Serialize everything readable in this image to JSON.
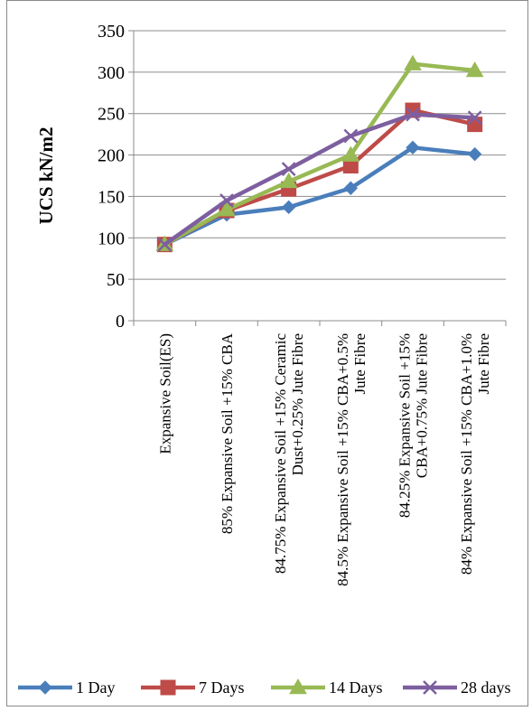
{
  "chart_data": {
    "type": "line",
    "title": "",
    "xlabel": "",
    "ylabel": "UCS  kN/m2",
    "ylim": [
      0,
      350
    ],
    "yticks": [
      0,
      50,
      100,
      150,
      200,
      250,
      300,
      350
    ],
    "grid": "horizontal",
    "legend_position": "bottom",
    "categories": [
      [
        "Expansive Soil(ES)"
      ],
      [
        "85% Expansive Soil  +15%  CBA"
      ],
      [
        "84.75% Expansive Soil  +15%  Ceramic",
        "Dust+0.25% Jute Fibre"
      ],
      [
        "84.5% Expansive Soil  +15%  CBA+0.5%",
        "Jute Fibre"
      ],
      [
        "84.25% Expansive Soil  +15%",
        "CBA+0.75% Jute Fibre"
      ],
      [
        "84% Expansive Soil  +15%  CBA+1.0%",
        "Jute Fibre"
      ]
    ],
    "series": [
      {
        "name": "1 Day",
        "color": "#4a7ebb",
        "marker": "diamond",
        "values": [
          92,
          128,
          137,
          160,
          209,
          201
        ]
      },
      {
        "name": "7 Days",
        "color": "#be4b48",
        "marker": "square",
        "values": [
          92,
          133,
          159,
          187,
          254,
          237
        ]
      },
      {
        "name": "14 Days",
        "color": "#98b954",
        "marker": "triangle",
        "values": [
          92,
          134,
          168,
          200,
          310,
          302
        ]
      },
      {
        "name": "28 days",
        "color": "#7d5fa0",
        "marker": "x",
        "values": [
          92,
          145,
          183,
          223,
          249,
          245
        ]
      }
    ]
  }
}
